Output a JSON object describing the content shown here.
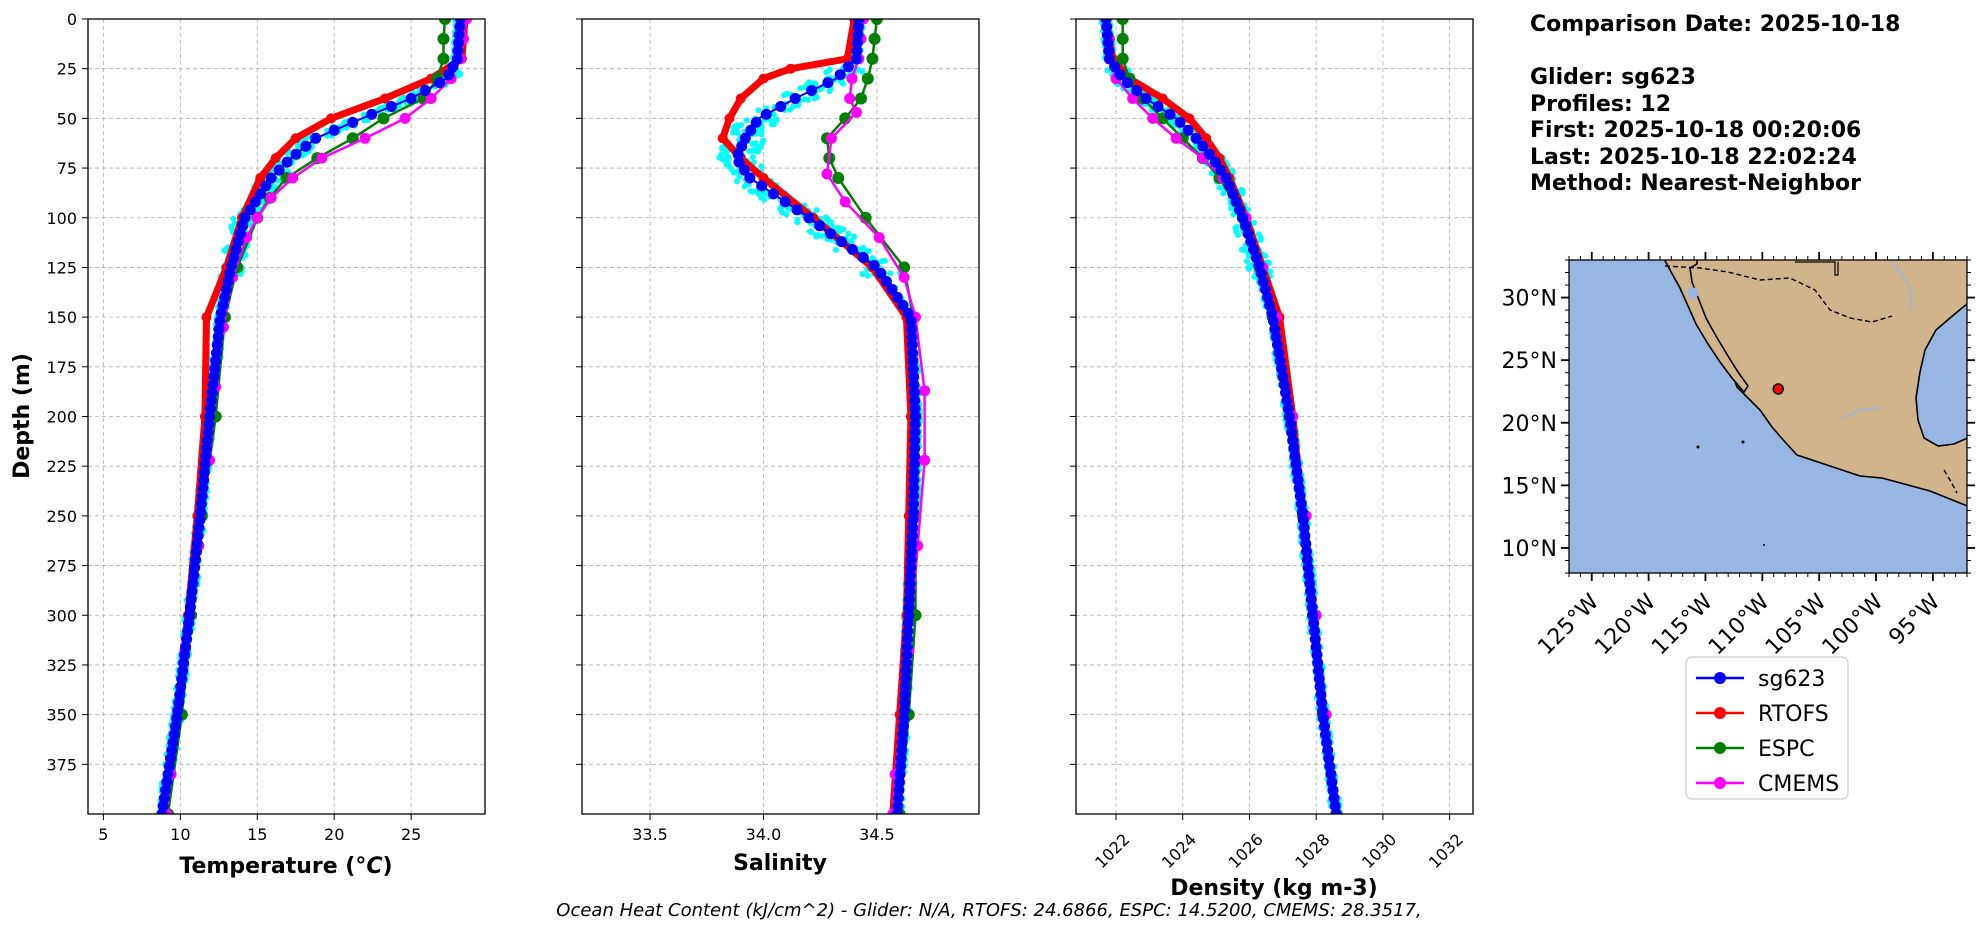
{
  "info": {
    "comparison_date": "Comparison Date: 2025-10-18",
    "glider": "Glider: sg623",
    "profiles": "Profiles: 12",
    "first": "First: 2025-10-18 00:20:06",
    "last": "Last: 2025-10-18 22:02:24",
    "method": "Method: Nearest-Neighbor"
  },
  "footnote": "Ocean Heat Content (kJ/cm^2) - Glider: N/A,  RTOFS: 24.6866,  ESPC: 14.5200,  CMEMS: 28.3517,",
  "colors": {
    "sg623": "#0000ff",
    "RTOFS": "#ff0000",
    "ESPC": "#008000",
    "CMEMS": "#ff00ff",
    "raw": "#00ffff",
    "ocean": "#97b6e1",
    "land": "#d2b48c"
  },
  "legend": [
    "sg623",
    "RTOFS",
    "ESPC",
    "CMEMS"
  ],
  "chart_data": [
    {
      "type": "line",
      "title": "",
      "xlabel": "Temperature (°C)",
      "ylabel": "Depth (m)",
      "xlim": [
        4,
        29.8
      ],
      "ylim": [
        400,
        0
      ],
      "xticks": [
        5,
        10,
        15,
        20,
        25
      ],
      "yticks": [
        0,
        25,
        50,
        75,
        100,
        125,
        150,
        175,
        200,
        225,
        250,
        275,
        300,
        325,
        350,
        375
      ],
      "grid": true,
      "series": [
        {
          "name": "sg623",
          "depth": [
            0,
            20,
            30,
            40,
            50,
            60,
            70,
            80,
            100,
            125,
            150,
            200,
            250,
            300,
            350,
            400
          ],
          "values": [
            28.2,
            28.0,
            27.3,
            25.0,
            21.8,
            18.8,
            17.2,
            15.9,
            14.2,
            13.3,
            12.6,
            11.9,
            11.3,
            10.6,
            9.8,
            8.8
          ]
        },
        {
          "name": "RTOFS",
          "depth": [
            0,
            20,
            30,
            40,
            50,
            60,
            70,
            80,
            100,
            125,
            150,
            200,
            250,
            300,
            350,
            400
          ],
          "values": [
            28.5,
            28.3,
            26.3,
            23.3,
            19.8,
            17.5,
            16.2,
            15.2,
            14.0,
            13.0,
            11.7,
            11.6,
            11.1,
            10.5,
            9.8,
            8.9
          ]
        },
        {
          "name": "ESPC",
          "depth": [
            0,
            10,
            20,
            30,
            40,
            50,
            60,
            70,
            80,
            90,
            100,
            125,
            150,
            200,
            250,
            300,
            350,
            400
          ],
          "values": [
            27.2,
            27.1,
            27.1,
            26.7,
            25.8,
            23.2,
            21.2,
            18.9,
            16.9,
            15.8,
            15.0,
            13.7,
            12.9,
            12.3,
            11.4,
            10.7,
            10.1,
            9.2
          ]
        },
        {
          "name": "CMEMS",
          "depth": [
            0,
            10,
            20,
            30,
            40,
            50,
            60,
            70,
            80,
            90,
            100,
            110,
            130,
            155,
            185,
            222,
            265,
            318,
            380,
            400
          ],
          "values": [
            28.6,
            28.4,
            28.2,
            27.6,
            26.3,
            24.6,
            22.0,
            19.2,
            17.3,
            15.9,
            15.0,
            14.3,
            13.4,
            12.8,
            12.3,
            11.9,
            11.2,
            10.3,
            9.4,
            9.1
          ]
        }
      ]
    },
    {
      "type": "line",
      "title": "",
      "xlabel": "Salinity",
      "ylabel": "",
      "xlim": [
        33.2,
        34.95
      ],
      "ylim": [
        400,
        0
      ],
      "xticks": [
        33.5,
        34.0,
        34.5
      ],
      "yticks": [
        0,
        25,
        50,
        75,
        100,
        125,
        150,
        175,
        200,
        225,
        250,
        275,
        300,
        325,
        350,
        375
      ],
      "grid": true,
      "series": [
        {
          "name": "sg623",
          "depth": [
            0,
            20,
            30,
            40,
            50,
            60,
            70,
            80,
            100,
            125,
            150,
            200,
            250,
            300,
            350,
            400
          ],
          "values": [
            34.42,
            34.41,
            34.32,
            34.14,
            33.98,
            33.92,
            33.88,
            33.94,
            34.2,
            34.5,
            34.65,
            34.67,
            34.66,
            34.64,
            34.62,
            34.59
          ]
        },
        {
          "name": "RTOFS",
          "depth": [
            0,
            20,
            25,
            30,
            40,
            50,
            60,
            70,
            80,
            100,
            125,
            150,
            200,
            250,
            300,
            350,
            400
          ],
          "values": [
            34.4,
            34.37,
            34.12,
            34.0,
            33.9,
            33.85,
            33.82,
            33.9,
            34.0,
            34.22,
            34.48,
            34.63,
            34.65,
            34.64,
            34.63,
            34.6,
            34.57
          ]
        },
        {
          "name": "ESPC",
          "depth": [
            0,
            10,
            20,
            30,
            40,
            50,
            60,
            70,
            80,
            100,
            125,
            150,
            200,
            250,
            300,
            350,
            400
          ],
          "values": [
            34.5,
            34.49,
            34.48,
            34.46,
            34.43,
            34.36,
            34.28,
            34.29,
            34.33,
            34.45,
            34.62,
            34.66,
            34.67,
            34.67,
            34.67,
            34.64,
            34.6
          ]
        },
        {
          "name": "CMEMS",
          "depth": [
            0,
            10,
            20,
            30,
            40,
            47,
            60,
            78,
            92,
            110,
            130,
            150,
            187,
            222,
            265,
            318,
            380,
            400
          ],
          "values": [
            34.44,
            34.43,
            34.42,
            34.39,
            34.38,
            34.41,
            34.3,
            34.28,
            34.36,
            34.51,
            34.62,
            34.67,
            34.71,
            34.71,
            34.68,
            34.64,
            34.58,
            34.57
          ]
        }
      ]
    },
    {
      "type": "line",
      "title": "",
      "xlabel": "Density (kg m-3)",
      "ylabel": "",
      "xlim": [
        1020.8,
        1032.7
      ],
      "ylim": [
        400,
        0
      ],
      "xticks": [
        1022,
        1024,
        1026,
        1028,
        1030,
        1032
      ],
      "yticks": [
        0,
        25,
        50,
        75,
        100,
        125,
        150,
        175,
        200,
        225,
        250,
        275,
        300,
        325,
        350,
        375
      ],
      "grid": true,
      "series": [
        {
          "name": "sg623",
          "depth": [
            0,
            20,
            30,
            40,
            50,
            60,
            70,
            80,
            100,
            125,
            150,
            200,
            250,
            300,
            350,
            400
          ],
          "values": [
            1021.7,
            1021.8,
            1022.2,
            1022.9,
            1023.8,
            1024.4,
            1024.9,
            1025.3,
            1025.8,
            1026.3,
            1026.7,
            1027.2,
            1027.6,
            1027.9,
            1028.2,
            1028.6
          ]
        },
        {
          "name": "RTOFS",
          "depth": [
            0,
            20,
            30,
            40,
            50,
            60,
            70,
            80,
            100,
            125,
            150,
            200,
            250,
            300,
            350,
            400
          ],
          "values": [
            1021.7,
            1021.9,
            1022.4,
            1023.4,
            1024.2,
            1024.7,
            1025.1,
            1025.4,
            1025.9,
            1026.4,
            1026.9,
            1027.3,
            1027.6,
            1027.9,
            1028.2,
            1028.6
          ]
        },
        {
          "name": "ESPC",
          "depth": [
            0,
            10,
            20,
            30,
            40,
            50,
            60,
            70,
            80,
            100,
            125,
            150,
            200,
            250,
            300,
            350,
            400
          ],
          "values": [
            1022.2,
            1022.2,
            1022.2,
            1022.4,
            1022.8,
            1023.4,
            1024.0,
            1024.6,
            1025.1,
            1025.8,
            1026.3,
            1026.7,
            1027.2,
            1027.6,
            1027.9,
            1028.2,
            1028.6
          ]
        },
        {
          "name": "CMEMS",
          "depth": [
            0,
            10,
            20,
            30,
            40,
            50,
            60,
            70,
            80,
            100,
            125,
            150,
            200,
            250,
            300,
            350,
            400
          ],
          "values": [
            1021.7,
            1021.8,
            1021.8,
            1022.0,
            1022.5,
            1023.1,
            1023.8,
            1024.6,
            1025.2,
            1025.9,
            1026.4,
            1026.8,
            1027.3,
            1027.7,
            1028.0,
            1028.3,
            1028.6
          ]
        }
      ]
    }
  ],
  "map": {
    "lon_range": [
      -127,
      -92
    ],
    "lat_range": [
      8,
      33
    ],
    "lon_ticks": [
      "125°W",
      "120°W",
      "115°W",
      "110°W",
      "105°W",
      "100°W",
      "95°W"
    ],
    "lat_ticks": [
      "30°N",
      "25°N",
      "20°N",
      "15°N",
      "10°N"
    ],
    "glider_marker": {
      "lon": -108.6,
      "lat": 22.7
    }
  }
}
